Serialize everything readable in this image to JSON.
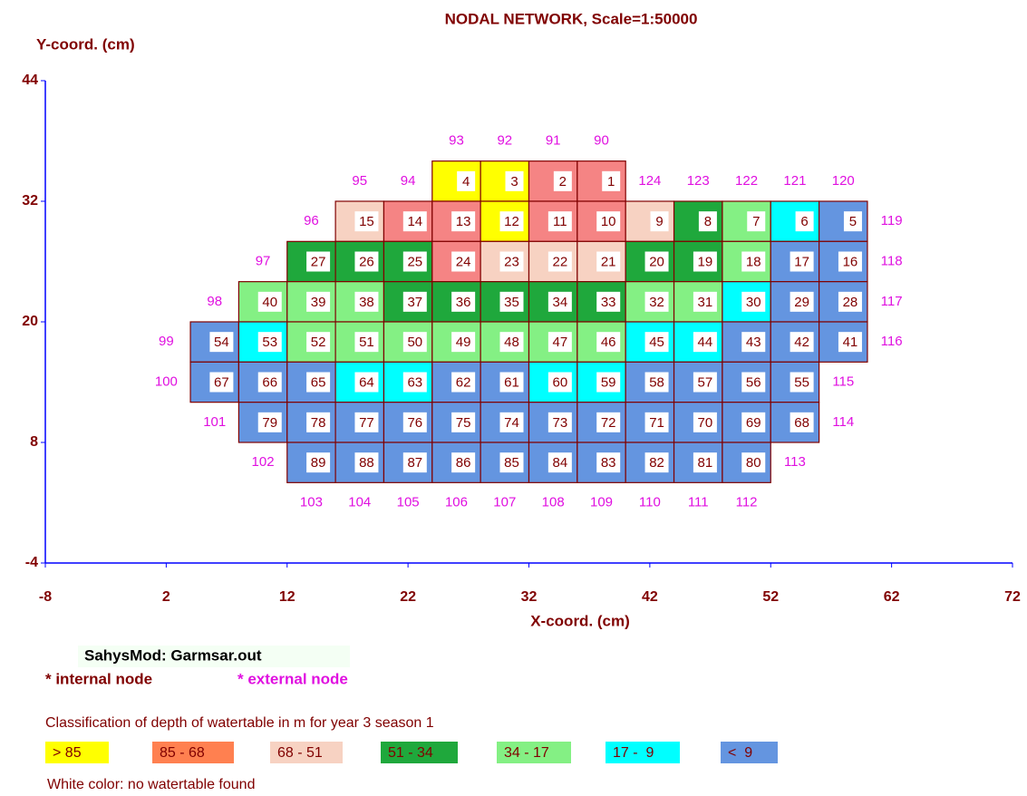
{
  "chart_data": {
    "type": "nodal-network",
    "title": "NODAL NETWORK, Scale=1:50000",
    "xlabel": "X-coord. (cm)",
    "ylabel": "Y-coord. (cm)",
    "xlim": [
      -8,
      72
    ],
    "ylim": [
      -4,
      44
    ],
    "xticks": [
      -8,
      2,
      12,
      22,
      32,
      42,
      52,
      62,
      72
    ],
    "yticks": [
      44,
      32,
      20,
      8,
      -4
    ],
    "internal_nodes": [
      {
        "label": 4,
        "x": 26,
        "y": 34,
        "color": "#ffff00"
      },
      {
        "label": 3,
        "x": 30,
        "y": 34,
        "color": "#ffff00"
      },
      {
        "label": 2,
        "x": 34,
        "y": 34,
        "color": "#f58484"
      },
      {
        "label": 1,
        "x": 38,
        "y": 34,
        "color": "#f58484"
      },
      {
        "label": 15,
        "x": 18,
        "y": 30,
        "color": "#f7d2c2"
      },
      {
        "label": 14,
        "x": 22,
        "y": 30,
        "color": "#f58484"
      },
      {
        "label": 13,
        "x": 26,
        "y": 30,
        "color": "#f58484"
      },
      {
        "label": 12,
        "x": 30,
        "y": 30,
        "color": "#ffff00"
      },
      {
        "label": 11,
        "x": 34,
        "y": 30,
        "color": "#f58484"
      },
      {
        "label": 10,
        "x": 38,
        "y": 30,
        "color": "#f58484"
      },
      {
        "label": 9,
        "x": 42,
        "y": 30,
        "color": "#f7d2c2"
      },
      {
        "label": 8,
        "x": 46,
        "y": 30,
        "color": "#1fa83c"
      },
      {
        "label": 7,
        "x": 50,
        "y": 30,
        "color": "#84f084"
      },
      {
        "label": 6,
        "x": 54,
        "y": 30,
        "color": "#00ffff"
      },
      {
        "label": 5,
        "x": 58,
        "y": 30,
        "color": "#6495e0"
      },
      {
        "label": 27,
        "x": 14,
        "y": 26,
        "color": "#1fa83c"
      },
      {
        "label": 26,
        "x": 18,
        "y": 26,
        "color": "#1fa83c"
      },
      {
        "label": 25,
        "x": 22,
        "y": 26,
        "color": "#1fa83c"
      },
      {
        "label": 24,
        "x": 26,
        "y": 26,
        "color": "#f58484"
      },
      {
        "label": 23,
        "x": 30,
        "y": 26,
        "color": "#f7d2c2"
      },
      {
        "label": 22,
        "x": 34,
        "y": 26,
        "color": "#f7d2c2"
      },
      {
        "label": 21,
        "x": 38,
        "y": 26,
        "color": "#f7d2c2"
      },
      {
        "label": 20,
        "x": 42,
        "y": 26,
        "color": "#1fa83c"
      },
      {
        "label": 19,
        "x": 46,
        "y": 26,
        "color": "#1fa83c"
      },
      {
        "label": 18,
        "x": 50,
        "y": 26,
        "color": "#84f084"
      },
      {
        "label": 17,
        "x": 54,
        "y": 26,
        "color": "#6495e0"
      },
      {
        "label": 16,
        "x": 58,
        "y": 26,
        "color": "#6495e0"
      },
      {
        "label": 40,
        "x": 10,
        "y": 22,
        "color": "#84f084"
      },
      {
        "label": 39,
        "x": 14,
        "y": 22,
        "color": "#84f084"
      },
      {
        "label": 38,
        "x": 18,
        "y": 22,
        "color": "#84f084"
      },
      {
        "label": 37,
        "x": 22,
        "y": 22,
        "color": "#1fa83c"
      },
      {
        "label": 36,
        "x": 26,
        "y": 22,
        "color": "#1fa83c"
      },
      {
        "label": 35,
        "x": 30,
        "y": 22,
        "color": "#1fa83c"
      },
      {
        "label": 34,
        "x": 34,
        "y": 22,
        "color": "#1fa83c"
      },
      {
        "label": 33,
        "x": 38,
        "y": 22,
        "color": "#1fa83c"
      },
      {
        "label": 32,
        "x": 42,
        "y": 22,
        "color": "#84f084"
      },
      {
        "label": 31,
        "x": 46,
        "y": 22,
        "color": "#84f084"
      },
      {
        "label": 30,
        "x": 50,
        "y": 22,
        "color": "#00ffff"
      },
      {
        "label": 29,
        "x": 54,
        "y": 22,
        "color": "#6495e0"
      },
      {
        "label": 28,
        "x": 58,
        "y": 22,
        "color": "#6495e0"
      },
      {
        "label": 54,
        "x": 6,
        "y": 18,
        "color": "#6495e0"
      },
      {
        "label": 53,
        "x": 10,
        "y": 18,
        "color": "#00ffff"
      },
      {
        "label": 52,
        "x": 14,
        "y": 18,
        "color": "#84f084"
      },
      {
        "label": 51,
        "x": 18,
        "y": 18,
        "color": "#84f084"
      },
      {
        "label": 50,
        "x": 22,
        "y": 18,
        "color": "#84f084"
      },
      {
        "label": 49,
        "x": 26,
        "y": 18,
        "color": "#84f084"
      },
      {
        "label": 48,
        "x": 30,
        "y": 18,
        "color": "#84f084"
      },
      {
        "label": 47,
        "x": 34,
        "y": 18,
        "color": "#84f084"
      },
      {
        "label": 46,
        "x": 38,
        "y": 18,
        "color": "#84f084"
      },
      {
        "label": 45,
        "x": 42,
        "y": 18,
        "color": "#00ffff"
      },
      {
        "label": 44,
        "x": 46,
        "y": 18,
        "color": "#00ffff"
      },
      {
        "label": 43,
        "x": 50,
        "y": 18,
        "color": "#6495e0"
      },
      {
        "label": 42,
        "x": 54,
        "y": 18,
        "color": "#6495e0"
      },
      {
        "label": 41,
        "x": 58,
        "y": 18,
        "color": "#6495e0"
      },
      {
        "label": 67,
        "x": 6,
        "y": 14,
        "color": "#6495e0"
      },
      {
        "label": 66,
        "x": 10,
        "y": 14,
        "color": "#6495e0"
      },
      {
        "label": 65,
        "x": 14,
        "y": 14,
        "color": "#6495e0"
      },
      {
        "label": 64,
        "x": 18,
        "y": 14,
        "color": "#00ffff"
      },
      {
        "label": 63,
        "x": 22,
        "y": 14,
        "color": "#00ffff"
      },
      {
        "label": 62,
        "x": 26,
        "y": 14,
        "color": "#6495e0"
      },
      {
        "label": 61,
        "x": 30,
        "y": 14,
        "color": "#6495e0"
      },
      {
        "label": 60,
        "x": 34,
        "y": 14,
        "color": "#00ffff"
      },
      {
        "label": 59,
        "x": 38,
        "y": 14,
        "color": "#00ffff"
      },
      {
        "label": 58,
        "x": 42,
        "y": 14,
        "color": "#6495e0"
      },
      {
        "label": 57,
        "x": 46,
        "y": 14,
        "color": "#6495e0"
      },
      {
        "label": 56,
        "x": 50,
        "y": 14,
        "color": "#6495e0"
      },
      {
        "label": 55,
        "x": 54,
        "y": 14,
        "color": "#6495e0"
      },
      {
        "label": 79,
        "x": 10,
        "y": 10,
        "color": "#6495e0"
      },
      {
        "label": 78,
        "x": 14,
        "y": 10,
        "color": "#6495e0"
      },
      {
        "label": 77,
        "x": 18,
        "y": 10,
        "color": "#6495e0"
      },
      {
        "label": 76,
        "x": 22,
        "y": 10,
        "color": "#6495e0"
      },
      {
        "label": 75,
        "x": 26,
        "y": 10,
        "color": "#6495e0"
      },
      {
        "label": 74,
        "x": 30,
        "y": 10,
        "color": "#6495e0"
      },
      {
        "label": 73,
        "x": 34,
        "y": 10,
        "color": "#6495e0"
      },
      {
        "label": 72,
        "x": 38,
        "y": 10,
        "color": "#6495e0"
      },
      {
        "label": 71,
        "x": 42,
        "y": 10,
        "color": "#6495e0"
      },
      {
        "label": 70,
        "x": 46,
        "y": 10,
        "color": "#6495e0"
      },
      {
        "label": 69,
        "x": 50,
        "y": 10,
        "color": "#6495e0"
      },
      {
        "label": 68,
        "x": 54,
        "y": 10,
        "color": "#6495e0"
      },
      {
        "label": 89,
        "x": 14,
        "y": 6,
        "color": "#6495e0"
      },
      {
        "label": 88,
        "x": 18,
        "y": 6,
        "color": "#6495e0"
      },
      {
        "label": 87,
        "x": 22,
        "y": 6,
        "color": "#6495e0"
      },
      {
        "label": 86,
        "x": 26,
        "y": 6,
        "color": "#6495e0"
      },
      {
        "label": 85,
        "x": 30,
        "y": 6,
        "color": "#6495e0"
      },
      {
        "label": 84,
        "x": 34,
        "y": 6,
        "color": "#6495e0"
      },
      {
        "label": 83,
        "x": 38,
        "y": 6,
        "color": "#6495e0"
      },
      {
        "label": 82,
        "x": 42,
        "y": 6,
        "color": "#6495e0"
      },
      {
        "label": 81,
        "x": 46,
        "y": 6,
        "color": "#6495e0"
      },
      {
        "label": 80,
        "x": 50,
        "y": 6,
        "color": "#6495e0"
      }
    ],
    "external_nodes": [
      {
        "label": 93,
        "x": 26,
        "y": 38
      },
      {
        "label": 92,
        "x": 30,
        "y": 38
      },
      {
        "label": 91,
        "x": 34,
        "y": 38
      },
      {
        "label": 90,
        "x": 38,
        "y": 38
      },
      {
        "label": 95,
        "x": 18,
        "y": 34
      },
      {
        "label": 94,
        "x": 22,
        "y": 34
      },
      {
        "label": 124,
        "x": 42,
        "y": 34
      },
      {
        "label": 123,
        "x": 46,
        "y": 34
      },
      {
        "label": 122,
        "x": 50,
        "y": 34
      },
      {
        "label": 121,
        "x": 54,
        "y": 34
      },
      {
        "label": 120,
        "x": 58,
        "y": 34
      },
      {
        "label": 96,
        "x": 14,
        "y": 30
      },
      {
        "label": 119,
        "x": 62,
        "y": 30
      },
      {
        "label": 97,
        "x": 10,
        "y": 26
      },
      {
        "label": 118,
        "x": 62,
        "y": 26
      },
      {
        "label": 98,
        "x": 6,
        "y": 22
      },
      {
        "label": 117,
        "x": 62,
        "y": 22
      },
      {
        "label": 99,
        "x": 2,
        "y": 18
      },
      {
        "label": 116,
        "x": 62,
        "y": 18
      },
      {
        "label": 100,
        "x": 2,
        "y": 14
      },
      {
        "label": 115,
        "x": 58,
        "y": 14
      },
      {
        "label": 101,
        "x": 6,
        "y": 10
      },
      {
        "label": 114,
        "x": 58,
        "y": 10
      },
      {
        "label": 102,
        "x": 10,
        "y": 6
      },
      {
        "label": 113,
        "x": 54,
        "y": 6
      },
      {
        "label": 103,
        "x": 14,
        "y": 2
      },
      {
        "label": 104,
        "x": 18,
        "y": 2
      },
      {
        "label": 105,
        "x": 22,
        "y": 2
      },
      {
        "label": 106,
        "x": 26,
        "y": 2
      },
      {
        "label": 107,
        "x": 30,
        "y": 2
      },
      {
        "label": 108,
        "x": 34,
        "y": 2
      },
      {
        "label": 109,
        "x": 38,
        "y": 2
      },
      {
        "label": 110,
        "x": 42,
        "y": 2
      },
      {
        "label": 111,
        "x": 46,
        "y": 2
      },
      {
        "label": 112,
        "x": 50,
        "y": 2
      }
    ],
    "source": "SahysMod: Garmsar.out",
    "key_internal": "* internal node",
    "key_external": "* external node",
    "legend": {
      "title": "Classification of depth of watertable in m for year 3 season 1",
      "items": [
        {
          "label": "> 85",
          "color": "#ffff00"
        },
        {
          "label": "85 - 68",
          "color": "#ff8050"
        },
        {
          "label": "68 - 51",
          "color": "#f7d2c2"
        },
        {
          "label": "51 - 34",
          "color": "#1fa83c"
        },
        {
          "label": "34 - 17",
          "color": "#84f084"
        },
        {
          "label": "17 -  9",
          "color": "#00ffff"
        },
        {
          "label": "<  9",
          "color": "#6495e0"
        }
      ],
      "note": "White color: no watertable found"
    }
  }
}
